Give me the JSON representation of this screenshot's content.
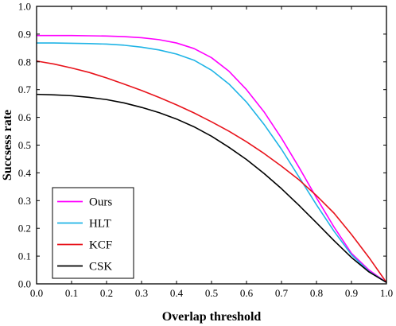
{
  "chart_data": {
    "type": "line",
    "title": "",
    "xlabel": "Overlap threshold",
    "ylabel": "Succsess rate",
    "xlim": [
      0,
      1
    ],
    "ylim": [
      0,
      1
    ],
    "xticks": [
      "0.0",
      "0.1",
      "0.2",
      "0.3",
      "0.4",
      "0.5",
      "0.6",
      "0.7",
      "0.8",
      "0.9",
      "1.0"
    ],
    "yticks": [
      "0.0",
      "0.1",
      "0.2",
      "0.3",
      "0.4",
      "0.5",
      "0.6",
      "0.7",
      "0.8",
      "0.9",
      "1.0"
    ],
    "grid": false,
    "legend_position": "bottom-left",
    "x": [
      0,
      0.05,
      0.1,
      0.15,
      0.2,
      0.25,
      0.3,
      0.35,
      0.4,
      0.45,
      0.5,
      0.55,
      0.6,
      0.65,
      0.7,
      0.75,
      0.8,
      0.85,
      0.9,
      0.95,
      1.0
    ],
    "series": [
      {
        "name": "Ours",
        "color": "#ff00ff",
        "values": [
          0.895,
          0.895,
          0.895,
          0.894,
          0.893,
          0.891,
          0.887,
          0.88,
          0.868,
          0.848,
          0.815,
          0.766,
          0.7,
          0.62,
          0.525,
          0.42,
          0.31,
          0.205,
          0.11,
          0.05,
          0.005
        ]
      },
      {
        "name": "HLT",
        "color": "#1fb4e6",
        "values": [
          0.868,
          0.868,
          0.867,
          0.866,
          0.864,
          0.86,
          0.853,
          0.843,
          0.828,
          0.806,
          0.77,
          0.72,
          0.655,
          0.575,
          0.485,
          0.385,
          0.285,
          0.19,
          0.105,
          0.045,
          0.005
        ]
      },
      {
        "name": "KCF",
        "color": "#e8131b",
        "values": [
          0.803,
          0.792,
          0.778,
          0.762,
          0.742,
          0.72,
          0.697,
          0.672,
          0.645,
          0.616,
          0.584,
          0.55,
          0.512,
          0.47,
          0.424,
          0.375,
          0.318,
          0.255,
          0.178,
          0.095,
          0.005
        ]
      },
      {
        "name": "CSK",
        "color": "#000000",
        "values": [
          0.683,
          0.681,
          0.678,
          0.672,
          0.664,
          0.652,
          0.636,
          0.617,
          0.594,
          0.566,
          0.532,
          0.492,
          0.448,
          0.398,
          0.343,
          0.283,
          0.22,
          0.156,
          0.095,
          0.043,
          0.005
        ]
      }
    ]
  }
}
